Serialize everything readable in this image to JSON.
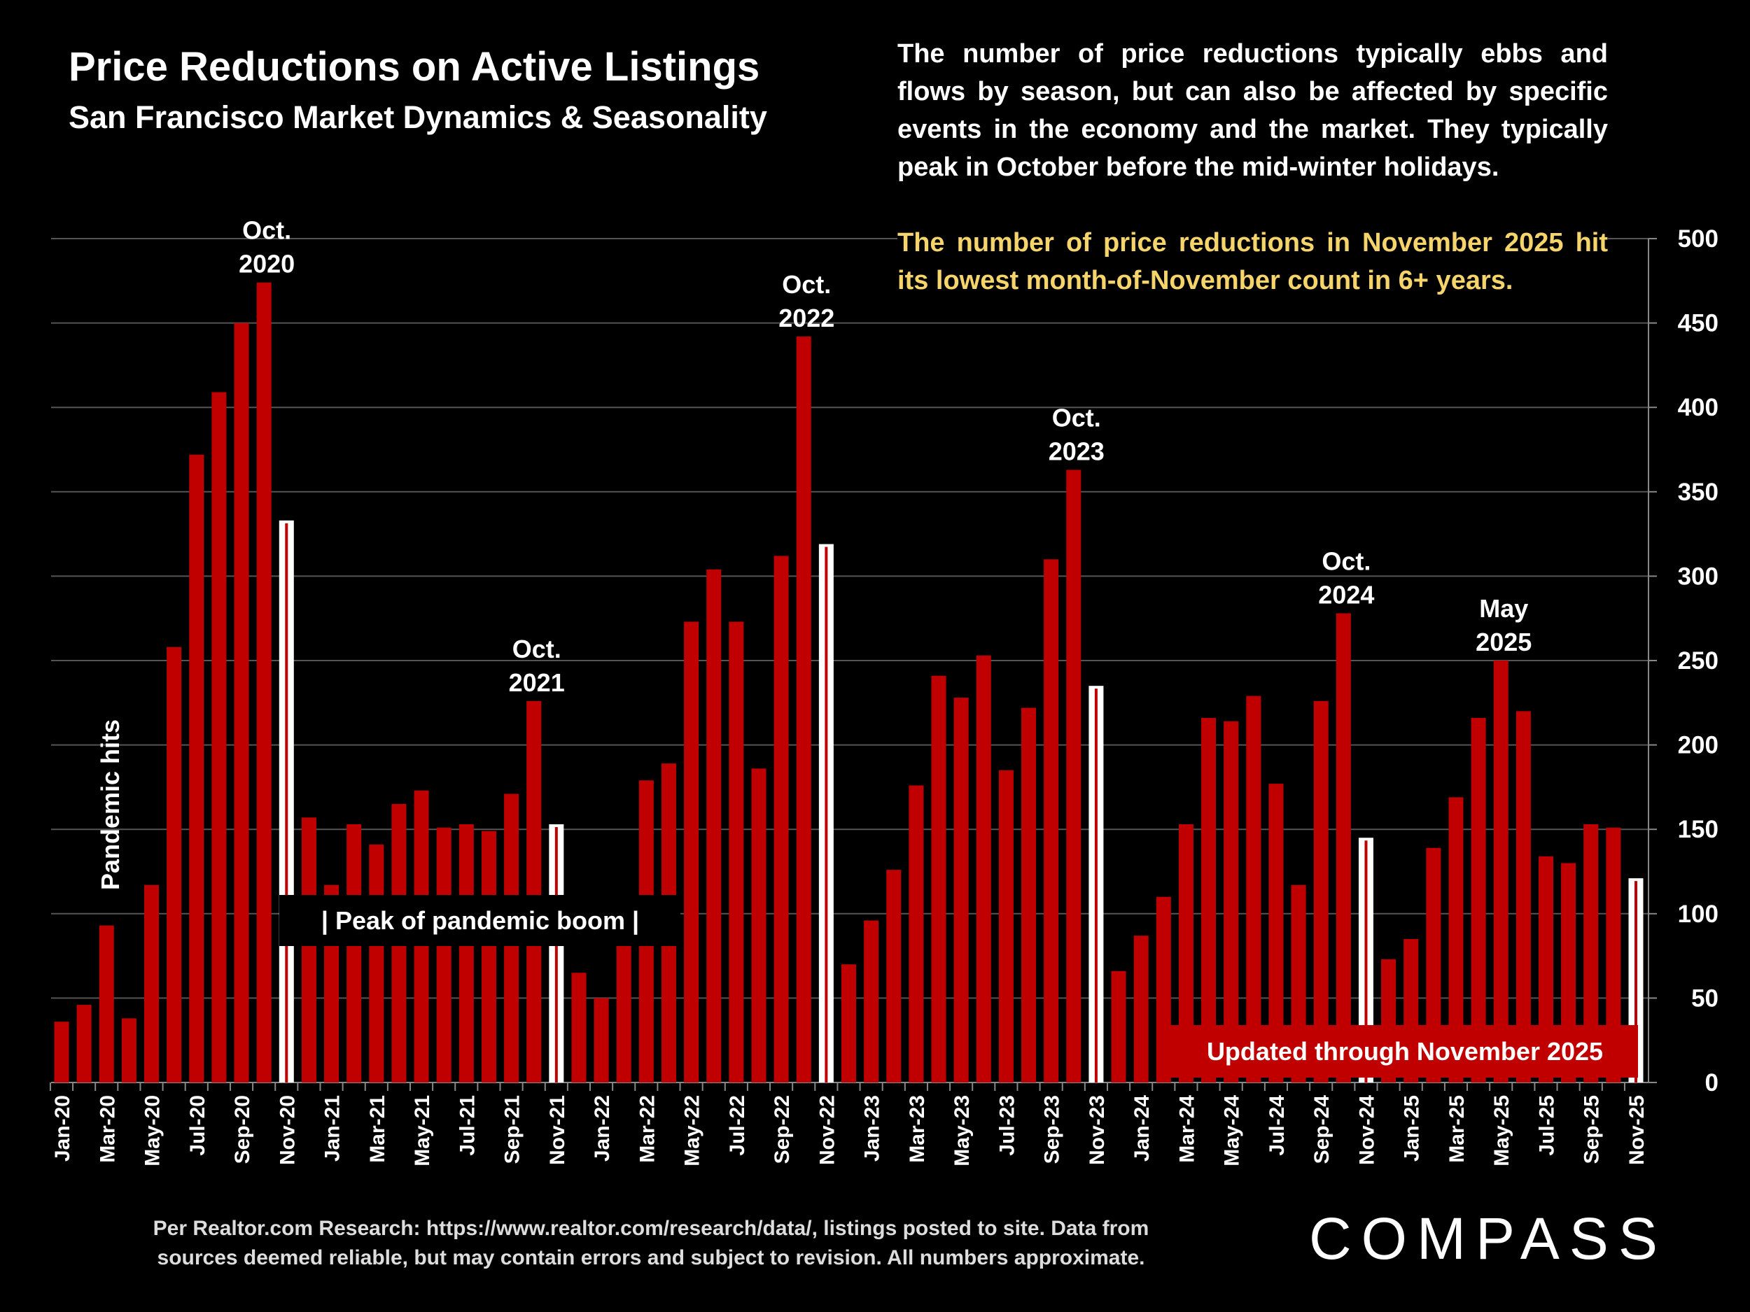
{
  "header": {
    "title": "Price Reductions on Active Listings",
    "subtitle": "San Francisco Market Dynamics & Seasonality"
  },
  "description": {
    "text1": "The number of price reductions typically ebbs and flows by season, but can also be affected by specific events in the economy and the market. They typically peak in October before the mid-winter holidays.",
    "text2": "The number of price reductions in November 2025 hit its lowest month-of-November count in 6+ years."
  },
  "footer": {
    "line1": "Per Realtor.com Research:  https://www.realtor.com/research/data/, listings posted to site. Data from",
    "line2": "sources deemed reliable, but may contain errors and subject to revision. All numbers approximate."
  },
  "logo": "COMPASS",
  "colors": {
    "bar": "#c00000",
    "highlight_bar": "#ffffff",
    "highlight_text": "#f5d46b",
    "background": "#000000"
  },
  "chart_data": {
    "type": "bar",
    "ylim": [
      0,
      500
    ],
    "yticks": [
      0,
      50,
      100,
      150,
      200,
      250,
      300,
      350,
      400,
      450,
      500
    ],
    "y_axis_side": "right",
    "grid": true,
    "categories": [
      "Jan-20",
      "Feb-20",
      "Mar-20",
      "Apr-20",
      "May-20",
      "Jun-20",
      "Jul-20",
      "Aug-20",
      "Sep-20",
      "Oct-20",
      "Nov-20",
      "Dec-20",
      "Jan-21",
      "Feb-21",
      "Mar-21",
      "Apr-21",
      "May-21",
      "Jun-21",
      "Jul-21",
      "Aug-21",
      "Sep-21",
      "Oct-21",
      "Nov-21",
      "Dec-21",
      "Jan-22",
      "Feb-22",
      "Mar-22",
      "Apr-22",
      "May-22",
      "Jun-22",
      "Jul-22",
      "Aug-22",
      "Sep-22",
      "Oct-22",
      "Nov-22",
      "Dec-22",
      "Jan-23",
      "Feb-23",
      "Mar-23",
      "Apr-23",
      "May-23",
      "Jun-23",
      "Jul-23",
      "Aug-23",
      "Sep-23",
      "Oct-23",
      "Nov-23",
      "Dec-23",
      "Jan-24",
      "Feb-24",
      "Mar-24",
      "Apr-24",
      "May-24",
      "Jun-24",
      "Jul-24",
      "Aug-24",
      "Sep-24",
      "Oct-24",
      "Nov-24",
      "Dec-24",
      "Jan-25",
      "Feb-25",
      "Mar-25",
      "Apr-25",
      "May-25",
      "Jun-25",
      "Jul-25",
      "Aug-25",
      "Sep-25",
      "Oct-25",
      "Nov-25"
    ],
    "values": [
      36,
      46,
      93,
      38,
      117,
      258,
      372,
      409,
      450,
      474,
      333,
      157,
      117,
      153,
      141,
      165,
      173,
      151,
      153,
      149,
      171,
      226,
      153,
      65,
      50,
      100,
      179,
      189,
      273,
      304,
      273,
      186,
      312,
      442,
      319,
      70,
      96,
      126,
      176,
      241,
      228,
      253,
      185,
      222,
      310,
      363,
      235,
      66,
      87,
      110,
      153,
      216,
      214,
      229,
      177,
      117,
      226,
      278,
      145,
      73,
      85,
      139,
      169,
      216,
      250,
      220,
      134,
      130,
      153,
      151,
      121
    ],
    "highlighted": [
      "Nov-20",
      "Nov-21",
      "Nov-22",
      "Nov-23",
      "Nov-24",
      "Nov-25"
    ],
    "annotations": [
      {
        "category": "Oct-20",
        "line1": "Oct.",
        "line2": "2020"
      },
      {
        "category": "Oct-21",
        "line1": "Oct.",
        "line2": "2021"
      },
      {
        "category": "Oct-22",
        "line1": "Oct.",
        "line2": "2022"
      },
      {
        "category": "Oct-23",
        "line1": "Oct.",
        "line2": "2023"
      },
      {
        "category": "Oct-24",
        "line1": "Oct.",
        "line2": "2024"
      },
      {
        "category": "May-25",
        "line1": "May",
        "line2": "2025"
      }
    ],
    "pandemic_label": "Pandemic hits",
    "peak_label": "|   Peak of pandemic boom   |",
    "updated_label": "Updated through November 2025"
  }
}
